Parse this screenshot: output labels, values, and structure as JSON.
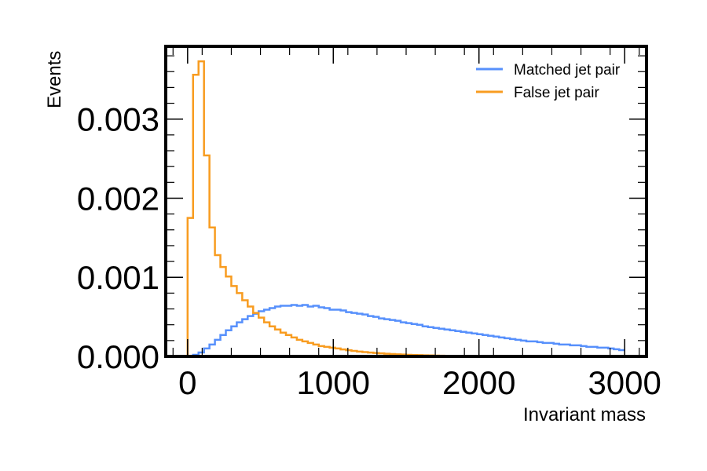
{
  "chart_data": {
    "type": "line",
    "xlabel": "Invariant mass",
    "ylabel": "Events",
    "xlim": [
      -150,
      3150
    ],
    "ylim": [
      0,
      0.00392
    ],
    "x_ticks": [
      0,
      1000,
      2000,
      3000
    ],
    "x_tick_labels": [
      "0",
      "1000",
      "2000",
      "3000"
    ],
    "y_ticks": [
      0,
      0.001,
      0.002,
      0.003
    ],
    "y_tick_labels": [
      "0.000",
      "0.001",
      "0.002",
      "0.003"
    ],
    "bin_edges": [
      0,
      37.5,
      75,
      112.5,
      150,
      187.5,
      225,
      262.5,
      300,
      337.5,
      375,
      412.5,
      450,
      487.5,
      525,
      562.5,
      600,
      637.5,
      675,
      712.5,
      750,
      787.5,
      825,
      862.5,
      900,
      937.5,
      975,
      1012.5,
      1050,
      1087.5,
      1125,
      1162.5,
      1200,
      1237.5,
      1275,
      1312.5,
      1350,
      1387.5,
      1425,
      1462.5,
      1500,
      1537.5,
      1575,
      1612.5,
      1650,
      1687.5,
      1725,
      1762.5,
      1800,
      1837.5,
      1875,
      1912.5,
      1950,
      1987.5,
      2025,
      2062.5,
      2100,
      2137.5,
      2175,
      2212.5,
      2250,
      2287.5,
      2325,
      2362.5,
      2400,
      2437.5,
      2475,
      2512.5,
      2550,
      2587.5,
      2625,
      2662.5,
      2700,
      2737.5,
      2775,
      2812.5,
      2850,
      2887.5,
      2925,
      2962.5,
      3000
    ],
    "grid": false,
    "legend_position": "top-right",
    "histtype": "step",
    "series": [
      {
        "name": "Matched jet pair",
        "color": "#5790fc",
        "values": [
          0,
          2e-05,
          5e-05,
          0.0001,
          0.00015,
          0.00021,
          0.00027,
          0.00033,
          0.00038,
          0.00043,
          0.00047,
          0.00051,
          0.00054,
          0.00057,
          0.00059,
          0.00061,
          0.00063,
          0.00064,
          0.00064,
          0.00065,
          0.00064,
          0.00065,
          0.00063,
          0.00064,
          0.00062,
          0.00061,
          0.00059,
          0.00059,
          0.00058,
          0.00056,
          0.00055,
          0.00054,
          0.00053,
          0.00051,
          0.0005,
          0.00048,
          0.00047,
          0.00046,
          0.00045,
          0.00043,
          0.00042,
          0.00041,
          0.0004,
          0.00038,
          0.00037,
          0.00036,
          0.00035,
          0.00034,
          0.00033,
          0.00032,
          0.00031,
          0.0003,
          0.00029,
          0.00028,
          0.00027,
          0.00026,
          0.00025,
          0.00024,
          0.00023,
          0.00022,
          0.00021,
          0.0002,
          0.00019,
          0.00019,
          0.00018,
          0.00017,
          0.00017,
          0.00016,
          0.00015,
          0.00015,
          0.00014,
          0.00014,
          0.00013,
          0.00012,
          0.00012,
          0.00011,
          0.00011,
          0.0001,
          9e-05,
          8e-05
        ]
      },
      {
        "name": "False jet pair",
        "color": "#f89c20",
        "values": [
          0.00175,
          0.00356,
          0.00373,
          0.00254,
          0.00163,
          0.00128,
          0.00113,
          0.00101,
          0.00089,
          0.0008,
          0.00071,
          0.00063,
          0.00055,
          0.00049,
          0.00043,
          0.00038,
          0.00034,
          0.0003,
          0.00027,
          0.00024,
          0.00021,
          0.00019,
          0.00017,
          0.00015,
          0.00013,
          0.00012,
          0.00011,
          0.0001,
          8.8e-05,
          7.8e-05,
          6.9e-05,
          6.1e-05,
          5.4e-05,
          4.8e-05,
          4.3e-05,
          3.8e-05,
          3.4e-05,
          3e-05,
          2.6e-05,
          2.3e-05,
          2e-05,
          1.8e-05,
          1.6e-05,
          1.4e-05,
          1.2e-05,
          1e-05,
          9e-06,
          8e-06,
          7e-06,
          6e-06,
          5e-06,
          4e-06,
          4e-06,
          3e-06,
          3e-06,
          2e-06,
          2e-06,
          0,
          0,
          0,
          0,
          0,
          0,
          0,
          0,
          0,
          0,
          0,
          0,
          0,
          0,
          0,
          0,
          0,
          0,
          0,
          0,
          0,
          0,
          0
        ]
      }
    ]
  }
}
